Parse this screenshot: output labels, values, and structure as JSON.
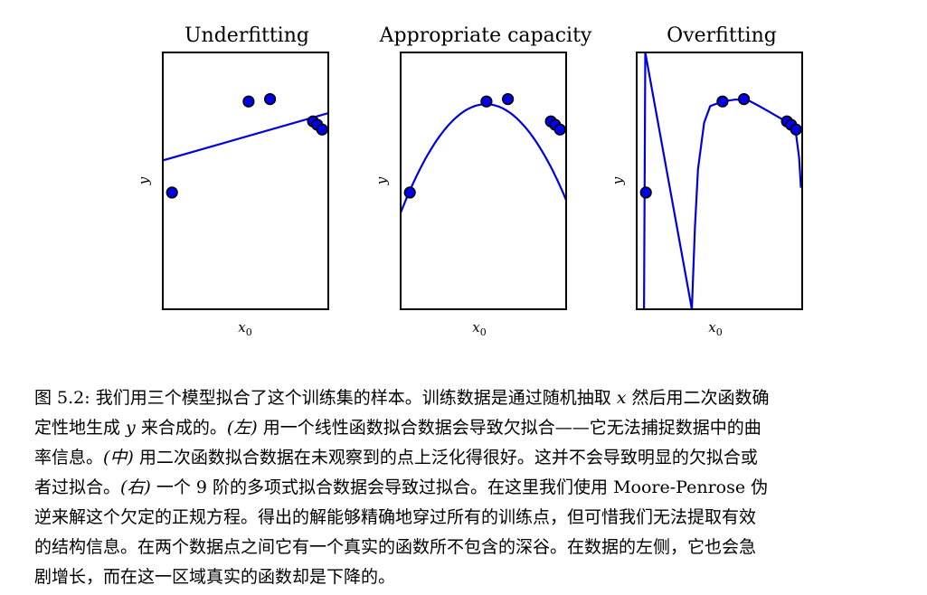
{
  "chart_data": [
    {
      "type": "scatter",
      "title": "Underfitting",
      "xlabel": "x0",
      "ylabel": "y",
      "xlim": [
        -0.1,
        2.6
      ],
      "ylim": [
        -6.5,
        4.5
      ],
      "grid": false,
      "points": [
        [
          0.05,
          -1.5
        ],
        [
          1.3,
          2.4
        ],
        [
          1.65,
          2.5
        ],
        [
          2.35,
          1.55
        ],
        [
          2.42,
          1.4
        ],
        [
          2.5,
          1.2
        ]
      ],
      "curve": {
        "model": "linear",
        "coefficients": [
          -0.05,
          0.75
        ]
      }
    },
    {
      "type": "scatter",
      "title": "Appropriate capacity",
      "xlabel": "x0",
      "ylabel": "y",
      "xlim": [
        -0.1,
        2.6
      ],
      "ylim": [
        -6.5,
        4.5
      ],
      "grid": false,
      "points": [
        [
          0.05,
          -1.5
        ],
        [
          1.3,
          2.4
        ],
        [
          1.65,
          2.5
        ],
        [
          2.35,
          1.55
        ],
        [
          2.42,
          1.4
        ],
        [
          2.5,
          1.2
        ]
      ],
      "curve": {
        "model": "quadratic",
        "coefficients": [
          -1.72,
          6.2,
          -2.4
        ]
      }
    },
    {
      "type": "scatter",
      "title": "Overfitting",
      "xlabel": "x0",
      "ylabel": "y",
      "xlim": [
        -0.1,
        2.6
      ],
      "ylim": [
        -6.5,
        4.5
      ],
      "grid": false,
      "points": [
        [
          0.05,
          -1.5
        ],
        [
          1.3,
          2.4
        ],
        [
          1.65,
          2.5
        ],
        [
          2.35,
          1.55
        ],
        [
          2.42,
          1.4
        ],
        [
          2.5,
          1.2
        ]
      ],
      "curve": {
        "model": "polynomial-9",
        "samples": [
          [
            0.02,
            -6.5
          ],
          [
            0.04,
            4.5
          ],
          [
            0.8,
            -6.5
          ],
          [
            0.85,
            -3.0
          ],
          [
            0.9,
            -0.5
          ],
          [
            1.0,
            1.5
          ],
          [
            1.1,
            2.2
          ],
          [
            1.3,
            2.4
          ],
          [
            1.5,
            2.48
          ],
          [
            1.7,
            2.48
          ],
          [
            1.9,
            2.2
          ],
          [
            2.1,
            1.9
          ],
          [
            2.3,
            1.6
          ],
          [
            2.4,
            1.42
          ],
          [
            2.5,
            1.0
          ],
          [
            2.55,
            0.0
          ],
          [
            2.58,
            -1.3
          ]
        ]
      }
    }
  ],
  "caption": {
    "lines": [
      [
        "图 5.2: 我们用三个模型拟合了这个训练集的样本。训练数据是通过随机抽取 ",
        {
          "it": "x"
        },
        " 然后用二次函数确"
      ],
      [
        "定性地生成 ",
        {
          "it": "y"
        },
        " 来合成的。",
        {
          "it": "(左)"
        },
        " 用一个线性函数拟合数据会导致欠拟合——它无法捕捉数据中的曲"
      ],
      [
        "率信息。",
        {
          "it": "(中)"
        },
        " 用二次函数拟合数据在未观察到的点上泛化得很好。这并不会导致明显的欠拟合或"
      ],
      [
        "者过拟合。",
        {
          "it": "(右)"
        },
        " 一个 9 阶的多项式拟合数据会导致过拟合。在这里我们使用 Moore-Penrose 伪"
      ],
      [
        "逆来解这个欠定的正规方程。得出的解能够精确地穿过所有的训练点，但可惜我们无法提取有效"
      ],
      [
        "的结构信息。在两个数据点之间它有一个真实的函数所不包含的深谷。在数据的左侧，它也会急"
      ],
      [
        "剧增长，而在这一区域真实的函数却是下降的。"
      ]
    ]
  }
}
